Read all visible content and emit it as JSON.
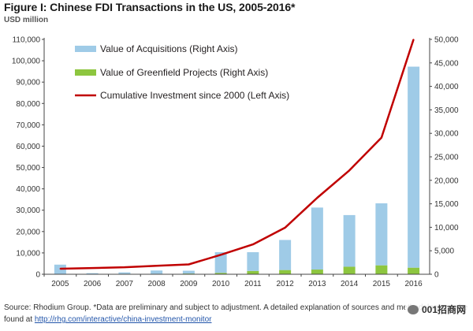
{
  "title": "Figure I: Chinese FDI Transactions in the US, 2005-2016*",
  "subtitle": "USD million",
  "source": {
    "label": "Source:",
    "text": " Rhodium Group. *Data are preliminary and subject to adjustment. A detailed explanation of sources and methodology can be found at ",
    "link": "http://rhg.com/interactive/china-investment-monitor"
  },
  "watermark": "001招商网",
  "chart_data": {
    "type": "bar",
    "categories": [
      "2005",
      "2006",
      "2007",
      "2008",
      "2009",
      "2010",
      "2011",
      "2012",
      "2013",
      "2014",
      "2015",
      "2016"
    ],
    "series": [
      {
        "name": "Value of Acquisitions (Right Axis)",
        "type": "bar",
        "axis": "right",
        "stack": "fdi",
        "color": "#9fcbe7",
        "values": [
          2000,
          150,
          300,
          700,
          600,
          4400,
          4000,
          6400,
          13200,
          11000,
          13200,
          42800
        ]
      },
      {
        "name": "Value of Greenfield Projects (Right Axis)",
        "type": "bar",
        "axis": "right",
        "stack": "fdi",
        "color": "#8dc63f",
        "values": [
          50,
          80,
          100,
          100,
          150,
          300,
          700,
          900,
          1000,
          1600,
          1900,
          1400
        ]
      },
      {
        "name": "Cumulative Investment since 2000 (Left Axis)",
        "type": "line",
        "axis": "left",
        "color": "#c00000",
        "values": [
          2600,
          2900,
          3300,
          4000,
          4600,
          9100,
          14000,
          21800,
          35800,
          48600,
          64000,
          110000
        ]
      }
    ],
    "y_left": {
      "min": 0,
      "max": 110000,
      "step": 10000
    },
    "y_right": {
      "min": 0,
      "max": 50000,
      "step": 5000
    },
    "legend": "top-left",
    "grid": false
  }
}
